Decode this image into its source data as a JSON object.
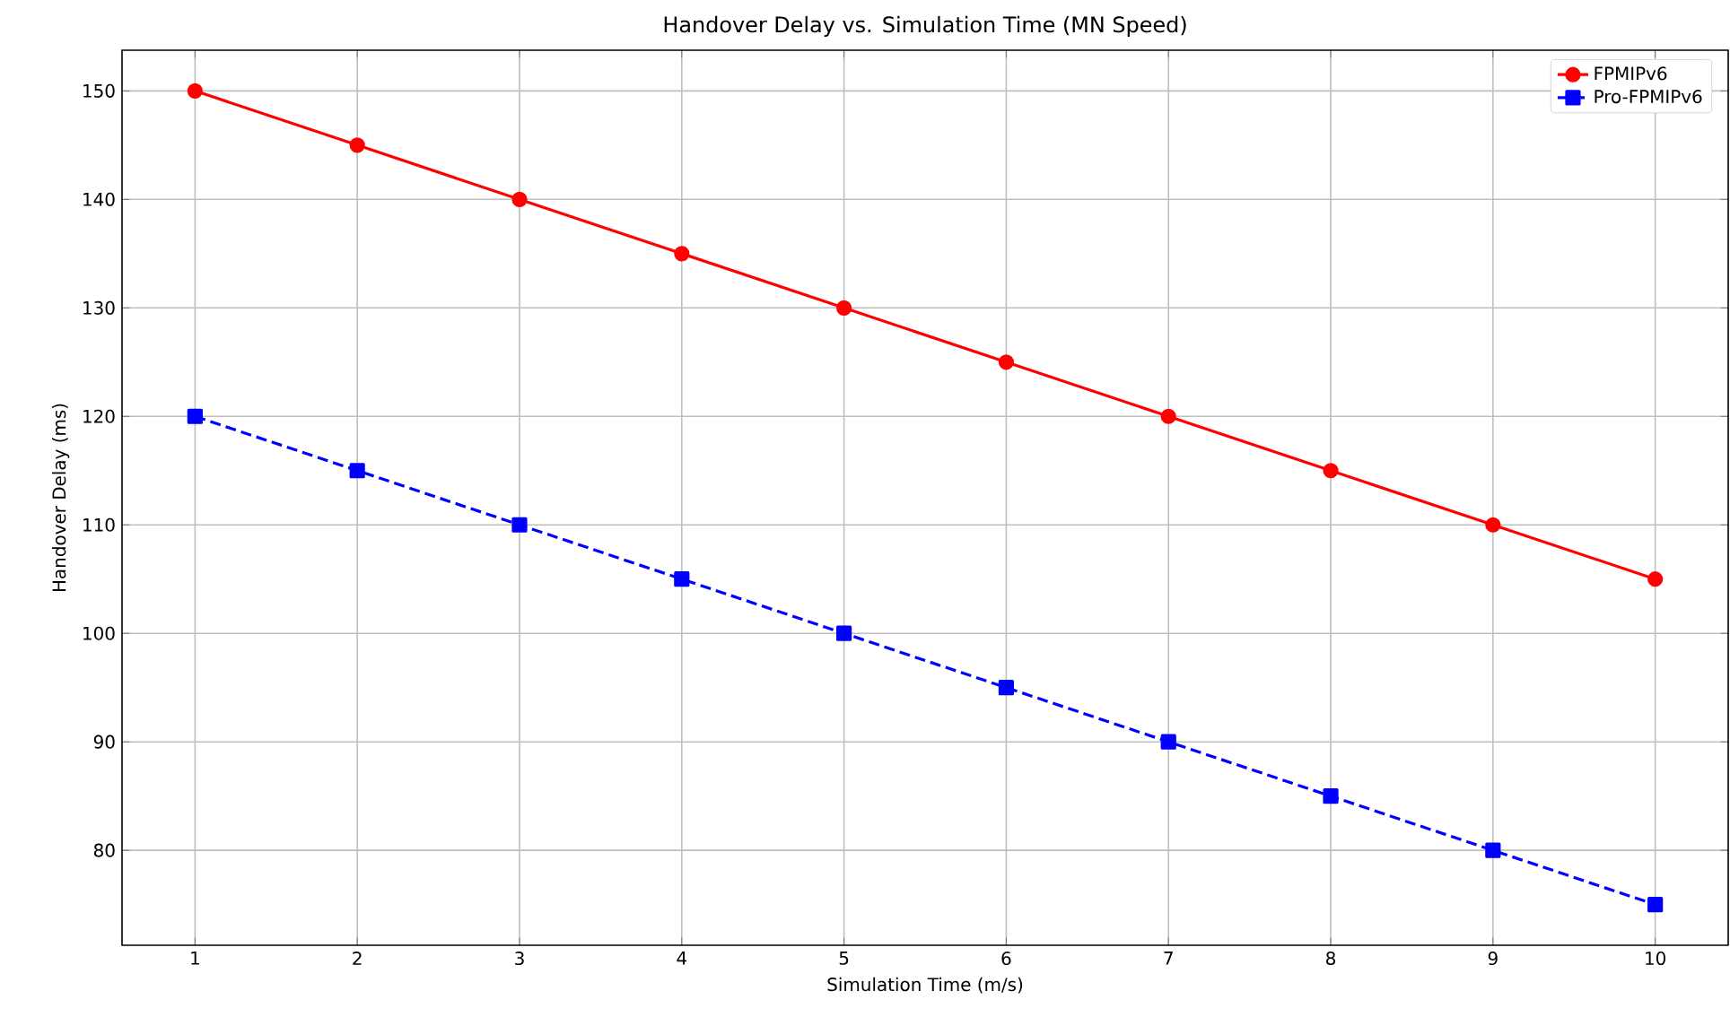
{
  "chart_data": {
    "type": "line",
    "title": "Handover Delay vs. Simulation Time (MN Speed)",
    "xlabel": "Simulation Time (m/s)",
    "ylabel": "Handover Delay (ms)",
    "x": [
      1,
      2,
      3,
      4,
      5,
      6,
      7,
      8,
      9,
      10
    ],
    "series": [
      {
        "name": "FPMIPv6",
        "color": "#ff0000",
        "marker": "circle",
        "line_style": "solid",
        "values": [
          150,
          145,
          140,
          135,
          130,
          125,
          120,
          115,
          110,
          105
        ]
      },
      {
        "name": "Pro-FPMIPv6",
        "color": "#0000ff",
        "marker": "square",
        "line_style": "dashed",
        "values": [
          120,
          115,
          110,
          105,
          100,
          95,
          90,
          85,
          80,
          75
        ]
      }
    ],
    "xlim": [
      0.55,
      10.45
    ],
    "ylim": [
      71.25,
      153.75
    ],
    "xticks": [
      1,
      2,
      3,
      4,
      5,
      6,
      7,
      8,
      9,
      10
    ],
    "yticks": [
      80,
      90,
      100,
      110,
      120,
      130,
      140,
      150
    ],
    "grid": true,
    "legend": "top right"
  }
}
